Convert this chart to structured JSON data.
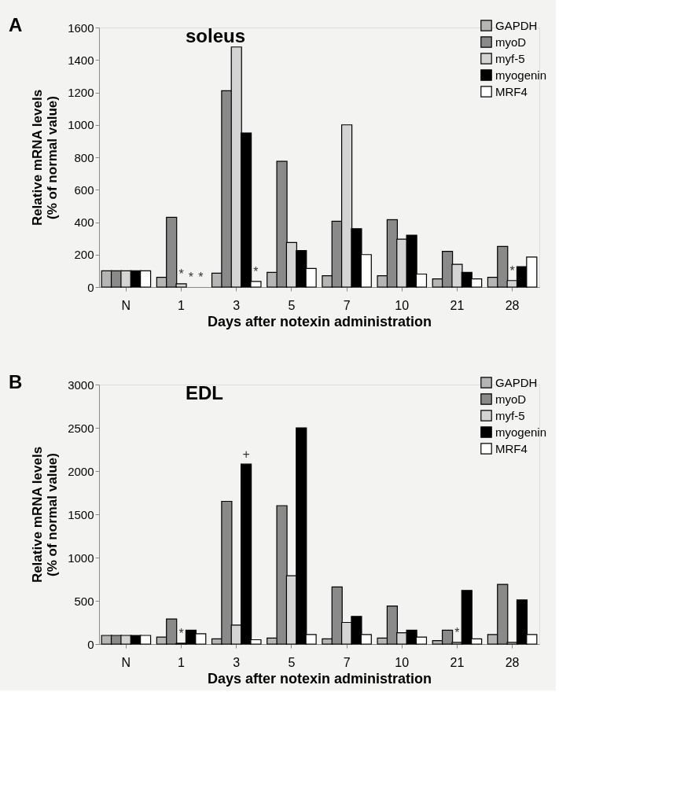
{
  "chart_data": [
    {
      "type": "bar",
      "title": "soleus",
      "xlabel": "Days after notexin administration",
      "ylabel": "Relative mRNA levels (% of normal value)",
      "annotations": [
        "A"
      ],
      "categories": [
        "N",
        "1",
        "3",
        "5",
        "7",
        "10",
        "21",
        "28"
      ],
      "ylim": [
        0,
        1600
      ],
      "yticks": [
        0,
        200,
        400,
        600,
        800,
        1000,
        1200,
        1400,
        1600
      ],
      "grid": false,
      "legend": "top right",
      "series": [
        {
          "name": "GAPDH",
          "color": "#b5b5b5",
          "values": [
            100,
            60,
            85,
            90,
            70,
            70,
            50,
            60
          ]
        },
        {
          "name": "myoD",
          "color": "#8a8a8a",
          "values": [
            100,
            430,
            1210,
            775,
            405,
            415,
            220,
            250
          ]
        },
        {
          "name": "myf-5",
          "color": "#d4d4d4",
          "values": [
            100,
            20,
            1480,
            275,
            1000,
            295,
            140,
            40
          ],
          "value_labels": [
            null,
            "*",
            null,
            null,
            null,
            null,
            null,
            "*"
          ]
        },
        {
          "name": "myogenin",
          "color": "#000000",
          "values": [
            100,
            null,
            950,
            225,
            360,
            320,
            90,
            125
          ],
          "value_labels": [
            null,
            "*",
            null,
            null,
            null,
            null,
            null,
            null
          ]
        },
        {
          "name": "MRF4",
          "color": "#ffffff",
          "values": [
            100,
            null,
            35,
            115,
            200,
            80,
            50,
            185
          ],
          "value_labels": [
            null,
            "*",
            "*",
            null,
            null,
            null,
            null,
            null
          ]
        }
      ]
    },
    {
      "type": "bar",
      "title": "EDL",
      "xlabel": "Days after notexin administration",
      "ylabel": "Relative mRNA levels (% of normal value)",
      "annotations": [
        "B"
      ],
      "categories": [
        "N",
        "1",
        "3",
        "5",
        "7",
        "10",
        "21",
        "28"
      ],
      "ylim": [
        0,
        3000
      ],
      "yticks": [
        0,
        500,
        1000,
        1500,
        2000,
        2500,
        3000
      ],
      "grid": false,
      "legend": "top right",
      "series": [
        {
          "name": "GAPDH",
          "color": "#b5b5b5",
          "values": [
            100,
            80,
            60,
            70,
            60,
            70,
            40,
            110
          ]
        },
        {
          "name": "myoD",
          "color": "#8a8a8a",
          "values": [
            100,
            290,
            1650,
            1600,
            660,
            440,
            160,
            690
          ]
        },
        {
          "name": "myf-5",
          "color": "#d4d4d4",
          "values": [
            100,
            10,
            220,
            790,
            250,
            130,
            20,
            20
          ],
          "value_labels": [
            null,
            "*",
            null,
            null,
            null,
            null,
            "*",
            null
          ]
        },
        {
          "name": "myogenin",
          "color": "#000000",
          "values": [
            100,
            160,
            2080,
            2500,
            320,
            160,
            620,
            510
          ],
          "value_labels": [
            null,
            null,
            "+",
            null,
            null,
            null,
            null,
            null
          ]
        },
        {
          "name": "MRF4",
          "color": "#ffffff",
          "values": [
            100,
            120,
            50,
            110,
            110,
            80,
            60,
            110
          ]
        }
      ]
    }
  ]
}
